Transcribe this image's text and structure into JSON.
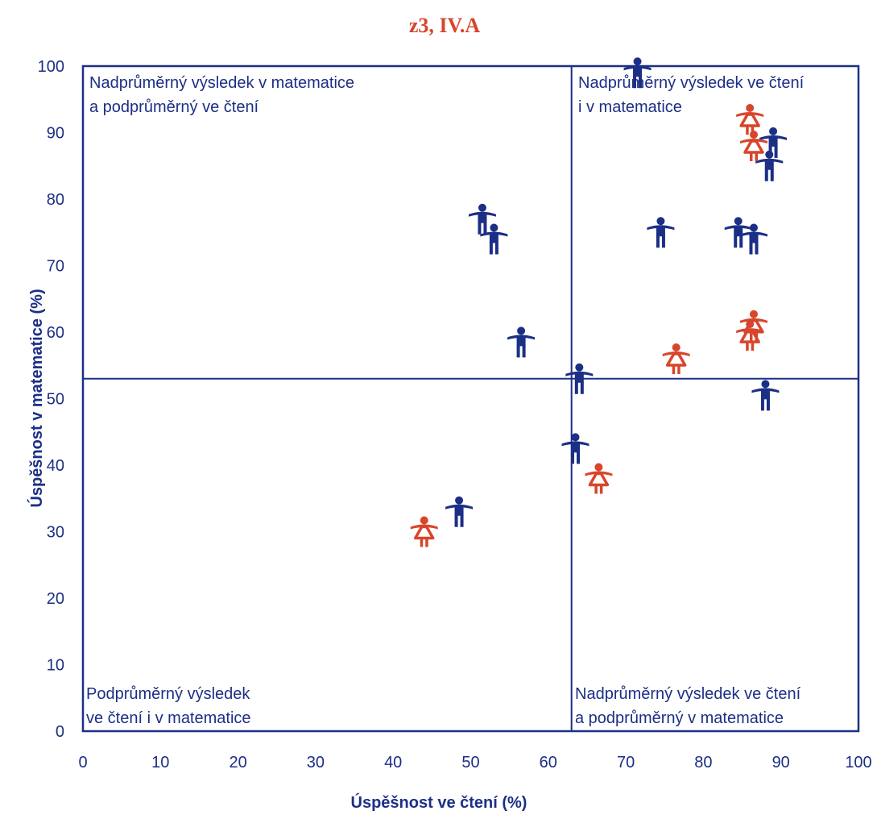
{
  "chart_data": {
    "type": "scatter",
    "title": "z3, IV.A",
    "xlabel": "Úspěšnost ve čtení (%)",
    "ylabel": "Úspěšnost v matematice (%)",
    "xlim": [
      0,
      100
    ],
    "ylim": [
      0,
      100
    ],
    "x_ticks": [
      "0",
      "10",
      "20",
      "30",
      "40",
      "50",
      "60",
      "70",
      "80",
      "90",
      "100"
    ],
    "y_ticks": [
      "0",
      "10",
      "20",
      "30",
      "40",
      "50",
      "60",
      "70",
      "80",
      "90",
      "100"
    ],
    "grid": false,
    "reference_lines": {
      "x": 63,
      "y": 53
    },
    "quadrant_labels": {
      "top_left": [
        "Nadprůměrný výsledek v matematice",
        "a podprůměrný ve čtení"
      ],
      "top_right": [
        "Nadprůměrný výsledek ve čtení",
        "i v matematice"
      ],
      "bottom_left": [
        "Podprůměrný výsledek",
        "ve čtení i v matematice"
      ],
      "bottom_right": [
        "Nadprůměrný výsledek ve čtení",
        "a podprůměrný v matematice"
      ]
    },
    "colors": {
      "boy": "#1c2f86",
      "girl": "#d8452b",
      "frame": "#1c2f86"
    },
    "series": [
      {
        "marker": "boy-icon",
        "points": [
          {
            "x": 71.5,
            "y": 99
          },
          {
            "x": 51.5,
            "y": 77
          },
          {
            "x": 53,
            "y": 74
          },
          {
            "x": 56.5,
            "y": 58.5
          },
          {
            "x": 74.5,
            "y": 75
          },
          {
            "x": 84.5,
            "y": 75
          },
          {
            "x": 86.5,
            "y": 74
          },
          {
            "x": 89,
            "y": 88.5
          },
          {
            "x": 88.5,
            "y": 85
          },
          {
            "x": 64,
            "y": 53
          },
          {
            "x": 88,
            "y": 50.5
          },
          {
            "x": 63.5,
            "y": 42.5
          },
          {
            "x": 48.5,
            "y": 33
          }
        ]
      },
      {
        "marker": "girl-icon",
        "points": [
          {
            "x": 86,
            "y": 92
          },
          {
            "x": 86.5,
            "y": 88
          },
          {
            "x": 86.5,
            "y": 61
          },
          {
            "x": 86,
            "y": 59.5
          },
          {
            "x": 76.5,
            "y": 56
          },
          {
            "x": 66.5,
            "y": 38
          },
          {
            "x": 44,
            "y": 30
          }
        ]
      }
    ]
  }
}
